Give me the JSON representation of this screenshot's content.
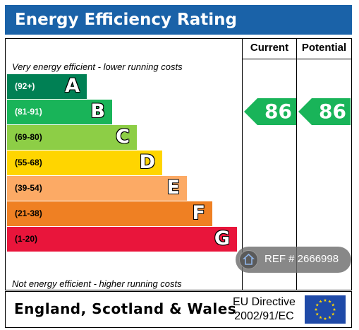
{
  "header": {
    "title": "Energy Efficiency Rating"
  },
  "columns": {
    "current": "Current",
    "potential": "Potential"
  },
  "captions": {
    "top": "Very energy efficient - lower running costs",
    "bottom": "Not energy efficient - higher running costs"
  },
  "chart_data": {
    "type": "bar",
    "categories": [
      "A",
      "B",
      "C",
      "D",
      "E",
      "F",
      "G"
    ],
    "ranges": [
      "(92+)",
      "(81-91)",
      "(69-80)",
      "(55-68)",
      "(39-54)",
      "(21-38)",
      "(1-20)"
    ],
    "band_colors": [
      "#008054",
      "#19b459",
      "#8dce46",
      "#ffd500",
      "#fcaa65",
      "#ef8023",
      "#e9153b"
    ],
    "current": {
      "value": 86,
      "band": "B",
      "color": "#19b459"
    },
    "potential": {
      "value": 86,
      "band": "B",
      "color": "#19b459"
    }
  },
  "footer": {
    "region": "England, Scotland & Wales",
    "directive_line1": "EU Directive",
    "directive_line2": "2002/91/EC"
  },
  "badge": {
    "text": "REF # 2666998",
    "icon": "home-icon"
  }
}
